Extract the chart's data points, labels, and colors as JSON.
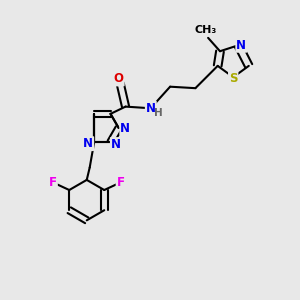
{
  "background_color": "#e8e8e8",
  "bond_color": "#000000",
  "bond_width": 1.5,
  "atom_colors": {
    "N": "#0000ee",
    "O": "#dd0000",
    "F": "#ee00ee",
    "S": "#aaaa00",
    "C": "#000000",
    "H": "#666666"
  },
  "font_size": 8.5,
  "fig_width": 3.0,
  "fig_height": 3.0,
  "dpi": 100
}
